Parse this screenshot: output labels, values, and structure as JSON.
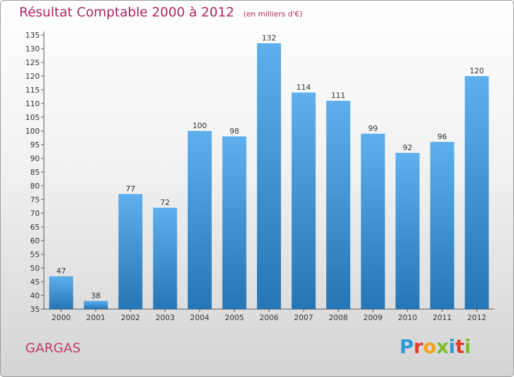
{
  "title": "Résultat Comptable 2000 à 2012",
  "unit_label": "(en milliers d'€)",
  "city": "GARGAS",
  "logo": {
    "letters": [
      "P",
      "r",
      "o",
      "x",
      "i",
      "t",
      "i"
    ],
    "colors": [
      "#2a9ad8",
      "#e23b2a",
      "#f2a21b",
      "#7abf2a",
      "#2a9ad8",
      "#e23b2a",
      "#7abf2a"
    ]
  },
  "colors": {
    "bar_light": "#5eb0ec",
    "bar_dark": "#2675b5",
    "title": "#b0245f"
  },
  "chart_data": {
    "type": "bar",
    "title": "Résultat Comptable 2000 à 2012",
    "xlabel": "",
    "ylabel": "",
    "categories": [
      "2000",
      "2001",
      "2002",
      "2003",
      "2004",
      "2005",
      "2006",
      "2007",
      "2008",
      "2009",
      "2010",
      "2011",
      "2012"
    ],
    "values": [
      47,
      38,
      77,
      72,
      100,
      98,
      132,
      114,
      111,
      99,
      92,
      96,
      120
    ],
    "ylim": [
      35,
      135
    ],
    "yticks": [
      35,
      40,
      45,
      50,
      55,
      60,
      65,
      70,
      75,
      80,
      85,
      90,
      95,
      100,
      105,
      110,
      115,
      120,
      125,
      130,
      135
    ],
    "grid": false
  }
}
